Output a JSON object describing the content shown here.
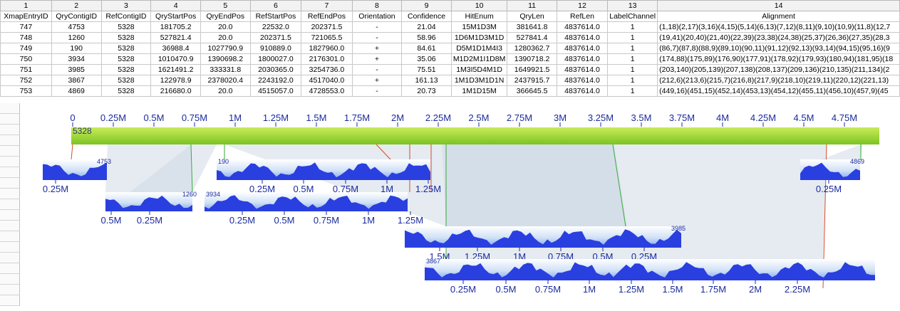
{
  "sheet": {
    "column_numbers": [
      "1",
      "2",
      "3",
      "4",
      "5",
      "6",
      "7",
      "8",
      "9",
      "10",
      "11",
      "12",
      "13",
      "14"
    ],
    "headers": [
      "XmapEntryID",
      "QryContigID",
      "RefContigID",
      "QryStartPos",
      "QryEndPos",
      "RefStartPos",
      "RefEndPos",
      "Orientation",
      "Confidence",
      "HitEnum",
      "QryLen",
      "RefLen",
      "LabelChannel",
      "Alignment"
    ],
    "rows": [
      [
        "747",
        "4753",
        "5328",
        "181705.2",
        "20.0",
        "22532.0",
        "202371.5",
        "-",
        "21.04",
        "15M1D3M",
        "381641.8",
        "4837614.0",
        "1",
        "(1,18)(2,17)(3,16)(4,15)(5,14)(6,13)(7,12)(8,11)(9,10)(10,9)(11,8)(12,7"
      ],
      [
        "748",
        "1260",
        "5328",
        "527821.4",
        "20.0",
        "202371.5",
        "721065.5",
        "-",
        "58.96",
        "1D6M1D3M1D",
        "527841.4",
        "4837614.0",
        "1",
        "(19,41)(20,40)(21,40)(22,39)(23,38)(24,38)(25,37)(26,36)(27,35)(28,3"
      ],
      [
        "749",
        "190",
        "5328",
        "36988.4",
        "1027790.9",
        "910889.0",
        "1827960.0",
        "+",
        "84.61",
        "D5M1D1M4I3",
        "1280362.7",
        "4837614.0",
        "1",
        "(86,7)(87,8)(88,9)(89,10)(90,11)(91,12)(92,13)(93,14)(94,15)(95,16)(9"
      ],
      [
        "750",
        "3934",
        "5328",
        "1010470.9",
        "1390698.2",
        "1800027.0",
        "2176301.0",
        "+",
        "35.06",
        "M1D2M1I1D8M",
        "1390718.2",
        "4837614.0",
        "1",
        "(174,88)(175,89)(176,90)(177,91)(178,92)(179,93)(180,94)(181,95)(18"
      ],
      [
        "751",
        "3985",
        "5328",
        "1621491.2",
        "333331.8",
        "2030365.0",
        "3254736.0",
        "-",
        "75.51",
        "1M3I5D4M1D",
        "1649921.5",
        "4837614.0",
        "1",
        "(203,140)(205,139)(207,138)(208,137)(209,136)(210,135)(211,134)(2"
      ],
      [
        "752",
        "3867",
        "5328",
        "122978.9",
        "2378020.4",
        "2243192.0",
        "4517040.0",
        "+",
        "161.13",
        "1M1D3M1D1N",
        "2437915.7",
        "4837614.0",
        "1",
        "(212,6)(213,6)(215,7)(216,8)(217,9)(218,10)(219,11)(220,12)(221,13)"
      ],
      [
        "753",
        "4869",
        "5328",
        "216680.0",
        "20.0",
        "4515057.0",
        "4728553.0",
        "-",
        "20.73",
        "1M1D15M",
        "366645.5",
        "4837614.0",
        "1",
        "(449,16)(451,15)(452,14)(453,13)(454,12)(455,11)(456,10)(457,9)(45"
      ]
    ]
  },
  "viz": {
    "ref": {
      "id": "5328",
      "ticks": [
        "0",
        "0.25M",
        "0.5M",
        "0.75M",
        "1M",
        "1.25M",
        "1.5M",
        "1.75M",
        "2M",
        "2.25M",
        "2.5M",
        "2.75M",
        "3M",
        "3.25M",
        "3.5M",
        "3.75M",
        "4M",
        "4.25M",
        "4.5M",
        "4.75M"
      ],
      "color": "#8fcc2e"
    },
    "contigs": [
      {
        "id": "4753",
        "ticks": [
          "0.25M"
        ]
      },
      {
        "id": "1260",
        "ticks": [
          "0.5M",
          "0.25M"
        ]
      },
      {
        "id": "190",
        "ticks": [
          "0.25M",
          "0.5M",
          "0.75M",
          "1M",
          "1.25M"
        ]
      },
      {
        "id": "3934",
        "ticks": [
          "0.25M",
          "0.5M",
          "0.75M",
          "1M",
          "1.25M"
        ]
      },
      {
        "id": "4869",
        "ticks": [
          "0.25M"
        ]
      },
      {
        "id": "3985",
        "ticks": [
          "1.5M",
          "1.25M",
          "1M",
          "0.75M",
          "0.5M",
          "0.25M"
        ]
      },
      {
        "id": "3867",
        "ticks": [
          "0.25M",
          "0.5M",
          "0.75M",
          "1M",
          "1.25M",
          "1.5M",
          "1.75M",
          "2M",
          "2.25M"
        ]
      }
    ],
    "colors": {
      "profile": "#2a3fe0",
      "axis_text": "#1a2a9e",
      "link": "#d0dae6"
    }
  }
}
